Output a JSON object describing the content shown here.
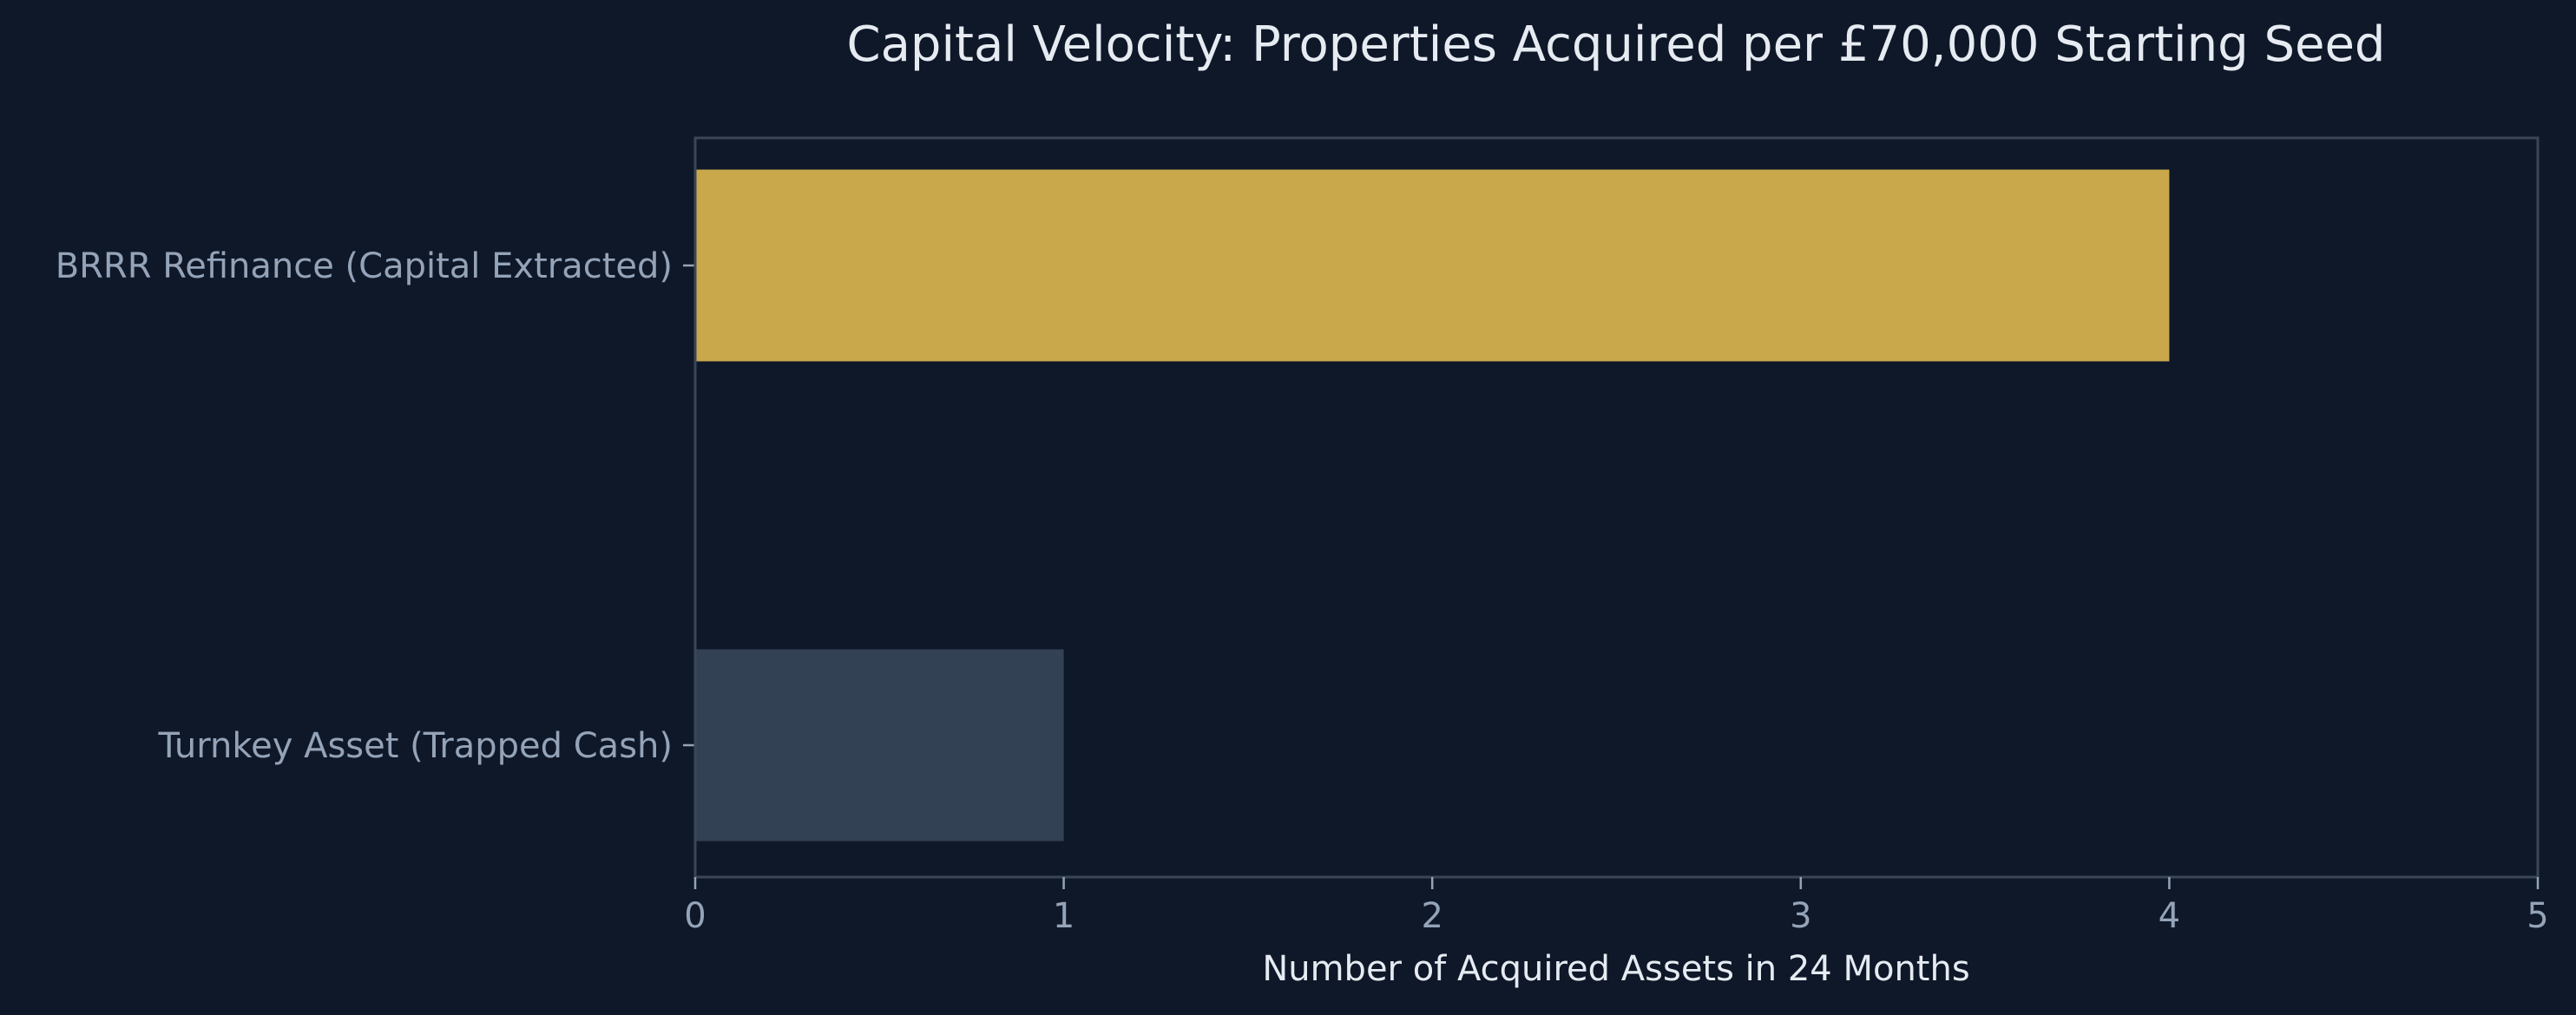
{
  "chart_data": {
    "type": "bar",
    "orientation": "horizontal",
    "title": "Capital Velocity: Properties Acquired per £70,000 Starting Seed",
    "xlabel": "Number of Acquired Assets in 24 Months",
    "ylabel": "",
    "xlim": [
      0,
      5
    ],
    "xticks": [
      "0",
      "1",
      "2",
      "3",
      "4",
      "5"
    ],
    "categories": [
      "BRRR Refinance (Capital Extracted)",
      "Turnkey Asset (Trapped Cash)"
    ],
    "values": [
      4,
      1
    ],
    "colors": [
      "#c9a84c",
      "#334155"
    ],
    "background": "#0f1829",
    "grid": false,
    "legend": "none"
  }
}
